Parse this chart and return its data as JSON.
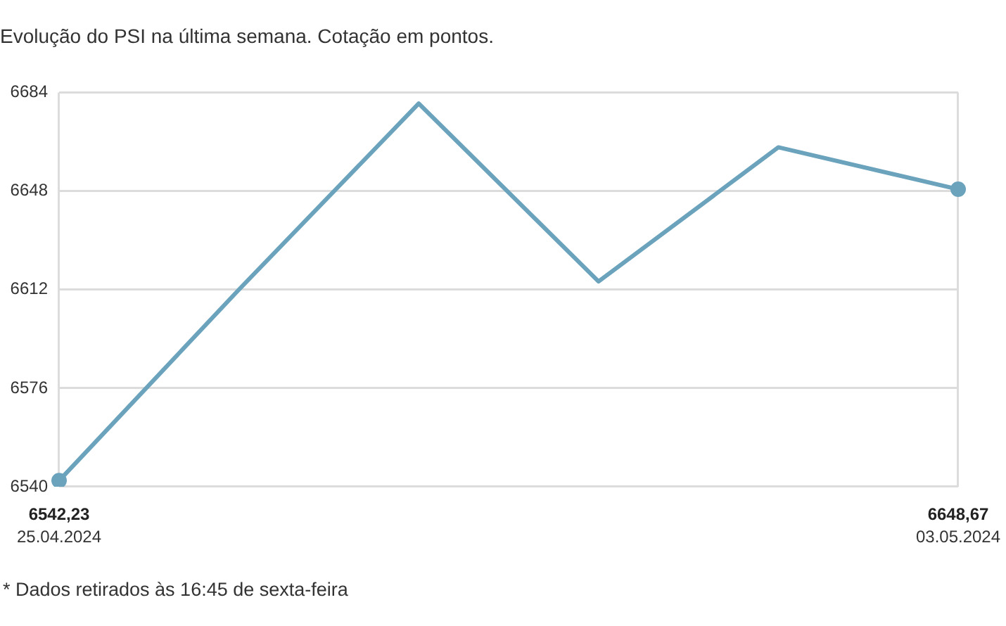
{
  "chart_data": {
    "type": "line",
    "title": "Evolução do PSI na última semana. Cotação em pontos.",
    "categories": [
      "25.04.2024",
      null,
      null,
      null,
      null,
      "03.05.2024"
    ],
    "series": [
      {
        "color": "#6ba3bd",
        "values": [
          6542.23,
          6612,
          6680,
          6615,
          6664,
          6648.67
        ],
        "value_labels": [
          "6542,23",
          null,
          null,
          null,
          null,
          "6648,67"
        ]
      },
      {
        "type": "scatter",
        "color": "#6ba3bd",
        "x": [
          "25.04.2024",
          "03.05.2024"
        ],
        "values": [
          6542.23,
          6648.67
        ]
      }
    ],
    "ylim": [
      6540,
      6684
    ],
    "yticks": [
      6540,
      6576,
      6612,
      6648,
      6684
    ],
    "grid": true,
    "annotations": [
      "* Dados retirados às 16:45 de sexta-feira"
    ]
  }
}
